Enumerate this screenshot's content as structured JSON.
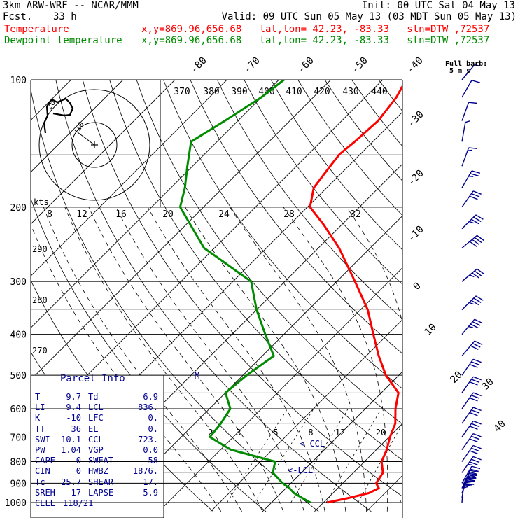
{
  "header": {
    "model": "3km ARW-WRF -- NCAR/MMM",
    "init": "Init: 00 UTC Sat 04 May 13",
    "fcst_label": "Fcst.",
    "fcst_value": "33 h",
    "valid": "Valid: 09 UTC Sun 05 May 13 (03 MDT Sun 05 May 13)",
    "temp_label": "Temperature",
    "dew_label": "Dewpoint temperature",
    "location": "x,y=869.96,656.68   lat,lon= 42.23, -83.33   stn=DTW ,72537"
  },
  "barb_key": {
    "title": "Full barb:",
    "units": "5 m s"
  },
  "hodograph": {
    "label": "kts",
    "ring_labels": [
      "10",
      "20"
    ]
  },
  "colors": {
    "temperature": "#ff0000",
    "dewpoint": "#008c00",
    "grid": "#000000",
    "parcel_text": "#000090",
    "barbs": "#000090"
  },
  "chart_data": {
    "type": "line",
    "title": "",
    "xlabel": "",
    "ylabel": "",
    "pressure_levels": [
      100,
      200,
      300,
      400,
      500,
      600,
      700,
      800,
      900,
      1000
    ],
    "isotherm_labels": [
      "-80",
      "-70",
      "-60",
      "-50",
      "-40",
      "-30",
      "-20",
      "-10",
      "0",
      "10",
      "20",
      "30",
      "40"
    ],
    "theta_labels": [
      "370",
      "380",
      "390",
      "400",
      "410",
      "420",
      "430",
      "440"
    ],
    "theta_e_labels_top": [
      "8",
      "12",
      "16",
      "20",
      "24",
      "28",
      "32"
    ],
    "theta_left_labels": [
      "290",
      "280",
      "270"
    ],
    "mixing_ratio_labels": [
      "2",
      "3",
      "5",
      "8",
      "12",
      "20"
    ],
    "annotations": [
      "CCL",
      "LCL",
      "M"
    ],
    "series": [
      {
        "name": "Temperature",
        "points": [
          [
            1000,
            10.7
          ],
          [
            975,
            14.0
          ],
          [
            950,
            16.9
          ],
          [
            925,
            17.9
          ],
          [
            900,
            16.4
          ],
          [
            850,
            15.7
          ],
          [
            800,
            13.3
          ],
          [
            750,
            12.0
          ],
          [
            700,
            10.2
          ],
          [
            650,
            8.6
          ],
          [
            600,
            5.8
          ],
          [
            550,
            3.3
          ],
          [
            500,
            -2.5
          ],
          [
            450,
            -7.6
          ],
          [
            400,
            -12.8
          ],
          [
            350,
            -18.6
          ],
          [
            300,
            -26.5
          ],
          [
            250,
            -36.0
          ],
          [
            220,
            -43.5
          ],
          [
            200,
            -49.5
          ],
          [
            180,
            -52.5
          ],
          [
            160,
            -53.5
          ],
          [
            150,
            -54.0
          ],
          [
            140,
            -53.5
          ],
          [
            125,
            -53.0
          ],
          [
            110,
            -54.0
          ],
          [
            100,
            -55.5
          ]
        ]
      },
      {
        "name": "Dewpoint temperature",
        "points": [
          [
            1000,
            7.5
          ],
          [
            975,
            5.0
          ],
          [
            950,
            2.5
          ],
          [
            925,
            0.7
          ],
          [
            900,
            -1.6
          ],
          [
            850,
            -5.5
          ],
          [
            800,
            -7.2
          ],
          [
            750,
            -18.0
          ],
          [
            700,
            -24.5
          ],
          [
            650,
            -25.0
          ],
          [
            600,
            -26.0
          ],
          [
            550,
            -30.0
          ],
          [
            500,
            -29.3
          ],
          [
            450,
            -27.8
          ],
          [
            400,
            -33.6
          ],
          [
            350,
            -40.0
          ],
          [
            300,
            -46.5
          ],
          [
            250,
            -62.0
          ],
          [
            200,
            -74.5
          ],
          [
            180,
            -77.3
          ],
          [
            160,
            -81.0
          ],
          [
            140,
            -85.0
          ],
          [
            125,
            -82.5
          ],
          [
            110,
            -80.0
          ],
          [
            100,
            -79.0
          ]
        ]
      }
    ],
    "wind_profile": [
      {
        "p": 1000,
        "spd": 20,
        "dir": 185
      },
      {
        "p": 975,
        "spd": 35,
        "dir": 190
      },
      {
        "p": 950,
        "spd": 40,
        "dir": 200
      },
      {
        "p": 925,
        "spd": 40,
        "dir": 205
      },
      {
        "p": 900,
        "spd": 40,
        "dir": 210
      },
      {
        "p": 850,
        "spd": 35,
        "dir": 215
      },
      {
        "p": 800,
        "spd": 30,
        "dir": 215
      },
      {
        "p": 750,
        "spd": 30,
        "dir": 215
      },
      {
        "p": 700,
        "spd": 30,
        "dir": 215
      },
      {
        "p": 650,
        "spd": 30,
        "dir": 215
      },
      {
        "p": 600,
        "spd": 30,
        "dir": 215
      },
      {
        "p": 550,
        "spd": 30,
        "dir": 215
      },
      {
        "p": 500,
        "spd": 30,
        "dir": 215
      },
      {
        "p": 450,
        "spd": 30,
        "dir": 220
      },
      {
        "p": 400,
        "spd": 35,
        "dir": 220
      },
      {
        "p": 350,
        "spd": 35,
        "dir": 225
      },
      {
        "p": 300,
        "spd": 35,
        "dir": 230
      },
      {
        "p": 250,
        "spd": 40,
        "dir": 230
      },
      {
        "p": 225,
        "spd": 35,
        "dir": 225
      },
      {
        "p": 200,
        "spd": 30,
        "dir": 215
      },
      {
        "p": 180,
        "spd": 25,
        "dir": 210
      },
      {
        "p": 160,
        "spd": 15,
        "dir": 200
      },
      {
        "p": 140,
        "spd": 5,
        "dir": 190
      },
      {
        "p": 125,
        "spd": 10,
        "dir": 200
      },
      {
        "p": 110,
        "spd": 10,
        "dir": 210
      },
      {
        "p": 100,
        "spd": 5,
        "dir": 220
      }
    ]
  },
  "parcel": {
    "title": "Parcel Info",
    "rows": [
      {
        "l1": "T",
        "v1": "9.7",
        "l2": "Td",
        "v2": "6.9"
      },
      {
        "l1": "LI",
        "v1": "9.4",
        "l2": "LCL",
        "v2": "836."
      },
      {
        "l1": "K",
        "v1": "-10",
        "l2": "LFC",
        "v2": "0."
      },
      {
        "l1": "TT",
        "v1": "36",
        "l2": "EL",
        "v2": "0."
      },
      {
        "l1": "SWI",
        "v1": "10.1",
        "l2": "CCL",
        "v2": "723."
      },
      {
        "l1": "PW",
        "v1": "1.04",
        "l2": "VGP",
        "v2": "0.0"
      },
      {
        "l1": "CAPE",
        "v1": "0",
        "l2": "SWEAT",
        "v2": "58"
      },
      {
        "l1": "CIN",
        "v1": "0",
        "l2": "HWBZ",
        "v2": "1876."
      },
      {
        "l1": "Tc",
        "v1": "25.7",
        "l2": "SHEAR",
        "v2": "17."
      },
      {
        "l1": "SREH",
        "v1": "17",
        "l2": "LAPSE",
        "v2": "5.9"
      },
      {
        "l1": "CELL",
        "v1": "118/21",
        "l2": "",
        "v2": ""
      }
    ]
  }
}
